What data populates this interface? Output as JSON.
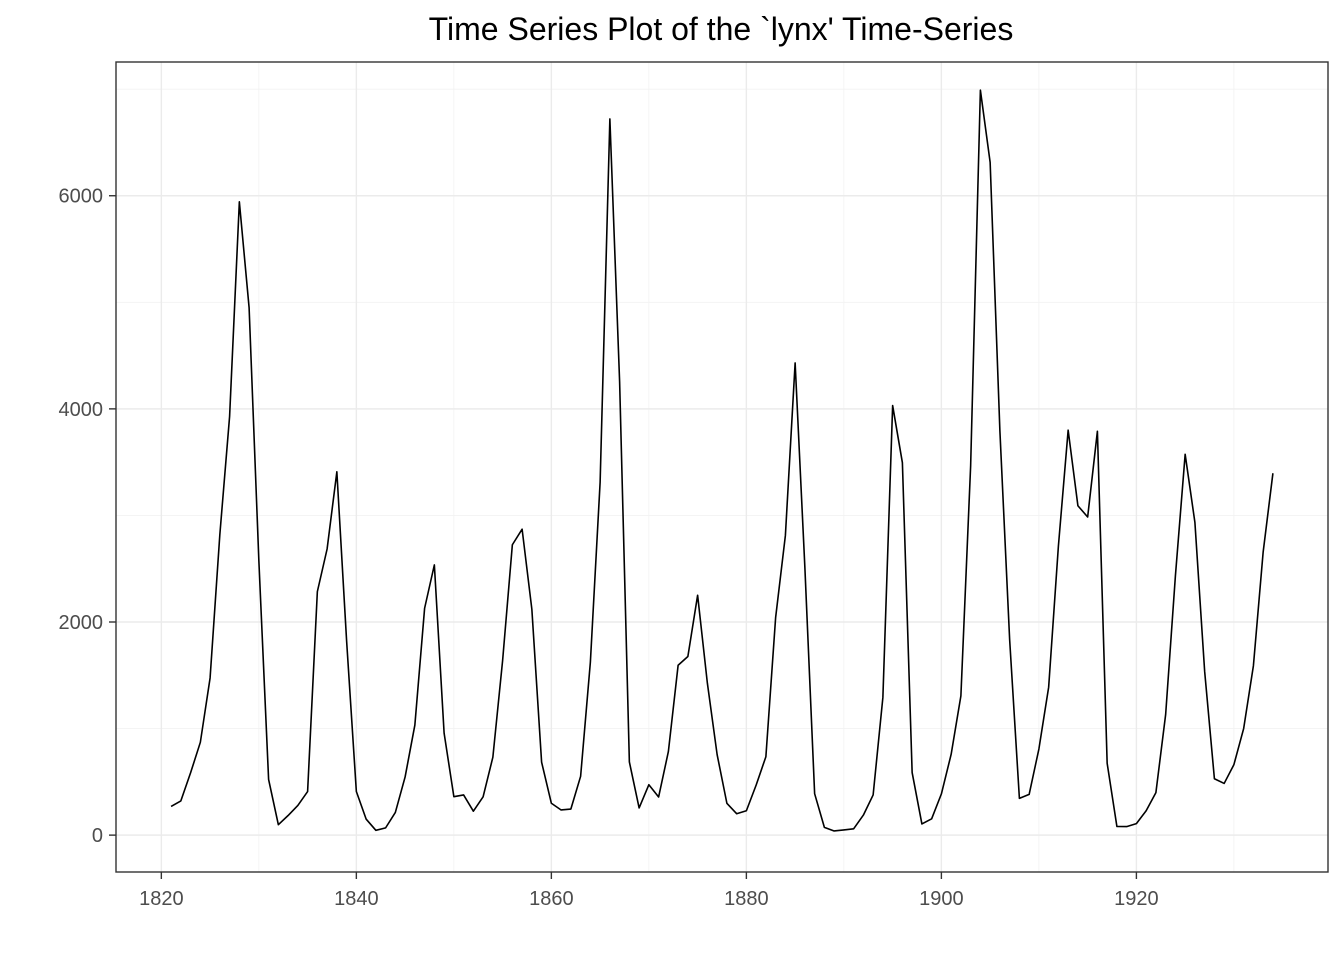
{
  "chart_data": {
    "type": "line",
    "title": "Time Series Plot of the `lynx' Time-Series",
    "xlabel": "",
    "ylabel": "",
    "xlim": [
      1815.35,
      1939.65
    ],
    "ylim": [
      -346,
      7255
    ],
    "x_ticks": [
      1820,
      1840,
      1860,
      1880,
      1900,
      1920
    ],
    "y_ticks": [
      0,
      2000,
      4000,
      6000
    ],
    "grid": true,
    "x_start": 1821,
    "series": [
      {
        "color": "#000000",
        "values": [
          269,
          321,
          585,
          871,
          1475,
          2821,
          3928,
          5943,
          4950,
          2577,
          523,
          98,
          184,
          279,
          409,
          2285,
          2685,
          3409,
          1824,
          409,
          151,
          45,
          68,
          213,
          546,
          1033,
          2129,
          2536,
          957,
          361,
          377,
          225,
          360,
          731,
          1638,
          2725,
          2871,
          2119,
          684,
          299,
          236,
          245,
          552,
          1623,
          3311,
          6721,
          4254,
          687,
          255,
          473,
          358,
          784,
          1594,
          1676,
          2251,
          1426,
          756,
          299,
          201,
          229,
          469,
          736,
          2042,
          2811,
          4431,
          2511,
          389,
          73,
          39,
          49,
          59,
          188,
          377,
          1292,
          4031,
          3495,
          587,
          105,
          153,
          387,
          758,
          1307,
          3465,
          6991,
          6313,
          3794,
          1836,
          345,
          382,
          808,
          1388,
          2713,
          3800,
          3091,
          2985,
          3790,
          674,
          81,
          80,
          108,
          229,
          399,
          1132,
          2432,
          3574,
          2935,
          1537,
          529,
          485,
          662,
          1000,
          1590,
          2657,
          3396
        ]
      }
    ]
  }
}
